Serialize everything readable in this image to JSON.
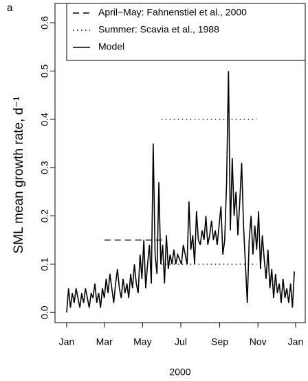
{
  "chart_data": {
    "type": "line",
    "panel_label": "a",
    "ylabel": "SML mean growth rate, d⁻¹",
    "xlabel": "2000",
    "xlim": [
      -17.6,
      381.4
    ],
    "ylim": [
      -0.021,
      0.64
    ],
    "xticks": [
      {
        "value": 1,
        "label": "Jan"
      },
      {
        "value": 61,
        "label": "Mar"
      },
      {
        "value": 122,
        "label": "May"
      },
      {
        "value": 183,
        "label": "Jul"
      },
      {
        "value": 245,
        "label": "Sep"
      },
      {
        "value": 306,
        "label": "Nov"
      },
      {
        "value": 366,
        "label": "Jan"
      }
    ],
    "yticks": [
      {
        "value": 0,
        "label": "0.0"
      },
      0.1,
      0.2,
      0.3,
      0.4,
      0.5,
      0.6
    ],
    "series": [
      {
        "name": "April−May: Fahnenstiel et al., 2000",
        "color": "#000000",
        "dash": "dashed",
        "x": [
          61,
          153
        ],
        "values": [
          0.15,
          0.15
        ]
      },
      {
        "name": "Summer: Scavia et al., 1988",
        "color": "#000000",
        "dash": "dotted",
        "x": [
          152,
          304,
          304,
          152,
          304
        ],
        "values": [
          0.4,
          0.4,
          null,
          0.1,
          0.1
        ]
      },
      {
        "name": "Model",
        "color": "#000000",
        "dash": "solid",
        "x": [
          1,
          4,
          7,
          10,
          13,
          16,
          19,
          22,
          25,
          28,
          31,
          34,
          37,
          40,
          43,
          46,
          49,
          52,
          55,
          58,
          61,
          64,
          67,
          70,
          73,
          76,
          79,
          82,
          85,
          88,
          91,
          94,
          97,
          100,
          103,
          106,
          109,
          112,
          115,
          118,
          121,
          124,
          127,
          130,
          133,
          136,
          139,
          142,
          145,
          148,
          151,
          154,
          157,
          160,
          163,
          166,
          169,
          172,
          175,
          178,
          181,
          184,
          187,
          190,
          193,
          196,
          199,
          202,
          205,
          208,
          211,
          214,
          217,
          220,
          223,
          226,
          229,
          232,
          235,
          238,
          241,
          244,
          247,
          250,
          253,
          256,
          259,
          262,
          265,
          268,
          271,
          274,
          277,
          280,
          283,
          286,
          289,
          292,
          295,
          298,
          301,
          304,
          307,
          310,
          313,
          316,
          319,
          322,
          325,
          328,
          331,
          334,
          337,
          340,
          343,
          346,
          349,
          352,
          355,
          358,
          361,
          364
        ],
        "values": [
          0.0,
          0.05,
          0.01,
          0.04,
          0.02,
          0.05,
          0.03,
          0.01,
          0.04,
          0.02,
          0.05,
          0.03,
          0.01,
          0.04,
          0.03,
          0.06,
          0.02,
          0.04,
          0.01,
          0.05,
          0.03,
          0.07,
          0.04,
          0.08,
          0.05,
          0.02,
          0.06,
          0.09,
          0.05,
          0.03,
          0.07,
          0.04,
          0.06,
          0.03,
          0.08,
          0.05,
          0.1,
          0.06,
          0.04,
          0.12,
          0.07,
          0.15,
          0.05,
          0.1,
          0.14,
          0.06,
          0.35,
          0.12,
          0.08,
          0.27,
          0.1,
          0.14,
          0.06,
          0.16,
          0.09,
          0.12,
          0.1,
          0.13,
          0.1,
          0.12,
          0.11,
          0.1,
          0.14,
          0.12,
          0.1,
          0.23,
          0.13,
          0.16,
          0.1,
          0.21,
          0.15,
          0.14,
          0.17,
          0.15,
          0.2,
          0.14,
          0.16,
          0.19,
          0.15,
          0.17,
          0.14,
          0.18,
          0.22,
          0.12,
          0.15,
          0.27,
          0.5,
          0.17,
          0.32,
          0.2,
          0.25,
          0.16,
          0.23,
          0.31,
          0.18,
          0.1,
          0.02,
          0.15,
          0.2,
          0.12,
          0.18,
          0.13,
          0.21,
          0.09,
          0.16,
          0.11,
          0.07,
          0.13,
          0.05,
          0.09,
          0.03,
          0.08,
          0.04,
          0.06,
          0.02,
          0.07,
          0.03,
          0.05,
          0.02,
          0.06,
          0.01,
          0.085
        ]
      }
    ]
  }
}
